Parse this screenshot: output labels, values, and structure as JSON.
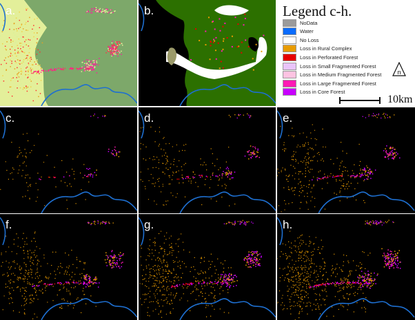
{
  "panels": [
    {
      "label": "a.",
      "style": "landcover"
    },
    {
      "label": "b.",
      "style": "classified"
    },
    {
      "label": "c.",
      "style": "loss",
      "intensity": 1
    },
    {
      "label": "d.",
      "style": "loss",
      "intensity": 2
    },
    {
      "label": "e.",
      "style": "loss",
      "intensity": 3
    },
    {
      "label": "f.",
      "style": "loss",
      "intensity": 4
    },
    {
      "label": "g.",
      "style": "loss",
      "intensity": 5
    },
    {
      "label": "h.",
      "style": "loss",
      "intensity": 6
    }
  ],
  "legend": {
    "title": "Legend c-h.",
    "items": [
      {
        "label": "NoData",
        "color": "#9b9b9b"
      },
      {
        "label": "Water",
        "color": "#0a6cff"
      },
      {
        "label": "No Loss",
        "color": "#ffffff"
      },
      {
        "label": "Loss in Rural Complex",
        "color": "#e89b00"
      },
      {
        "label": "Loss in Perforated Forest",
        "color": "#e60000"
      },
      {
        "label": "Loss in Small Fragmented Forest",
        "color": "#e9c4fb"
      },
      {
        "label": "Loss in Medium Fragmented Forest",
        "color": "#fdc3e2"
      },
      {
        "label": "Loss in Large Fragmented Forest",
        "color": "#ff19b4"
      },
      {
        "label": "Loss in Core Forest",
        "color": "#c800ff"
      }
    ]
  },
  "north_arrow_label": "n",
  "scale_label": "10km",
  "colors": {
    "forest_green": "#2c7000",
    "landcover_green": "#7da86a",
    "river": "#1e6fd0",
    "background": "#000000"
  }
}
